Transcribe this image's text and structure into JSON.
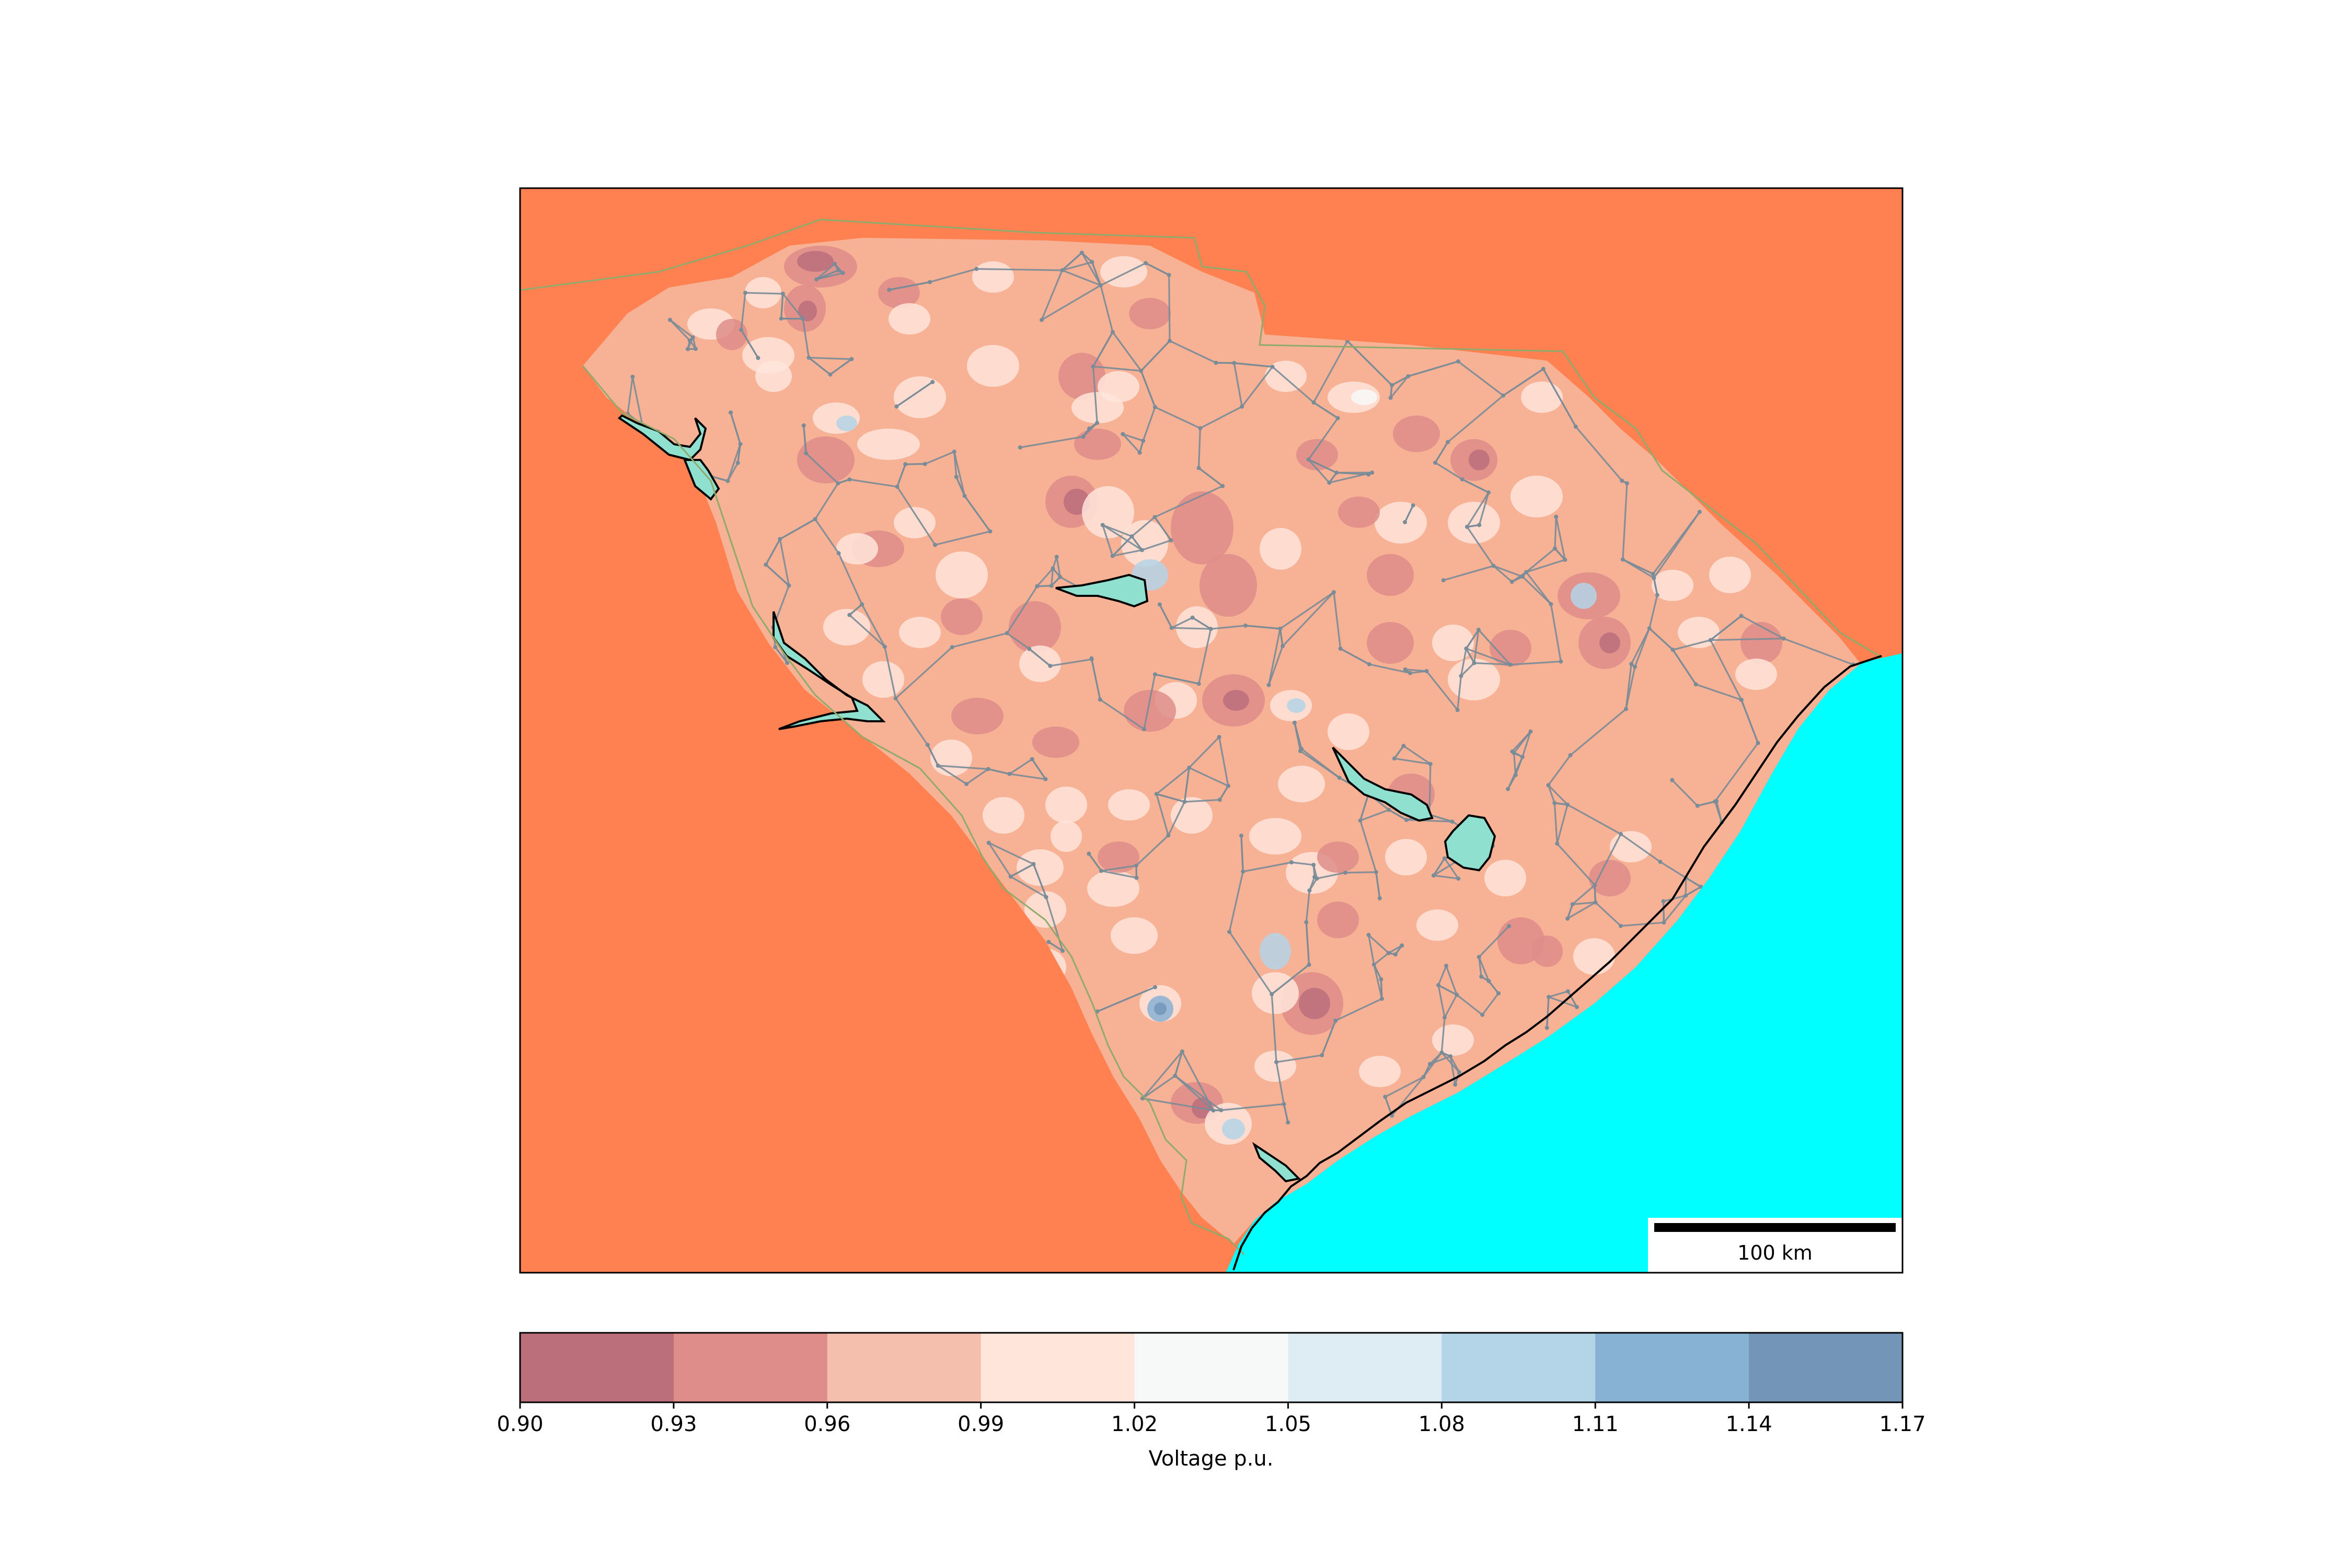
{
  "colors": {
    "background_land": "#ff8050",
    "ocean": "#00ffff",
    "lakes": "#90e0d0",
    "state_border": "#8faa6a",
    "lines": "#7a8c98",
    "heatmap_base": "#f7b195"
  },
  "map": {
    "scale_bar": {
      "label": "100 km"
    }
  },
  "colorbar": {
    "label": "Voltage p.u.",
    "ticks": [
      "0.90",
      "0.93",
      "0.96",
      "0.99",
      "1.02",
      "1.05",
      "1.08",
      "1.11",
      "1.14",
      "1.17"
    ],
    "bins": [
      {
        "range": [
          0.9,
          0.93
        ],
        "color": "#bb6f7b"
      },
      {
        "range": [
          0.93,
          0.96
        ],
        "color": "#de8d8a"
      },
      {
        "range": [
          0.96,
          0.99
        ],
        "color": "#f5bfae"
      },
      {
        "range": [
          0.99,
          1.02
        ],
        "color": "#ffe5da"
      },
      {
        "range": [
          1.02,
          1.05
        ],
        "color": "#f7f9f9"
      },
      {
        "range": [
          1.05,
          1.08
        ],
        "color": "#deedf3"
      },
      {
        "range": [
          1.08,
          1.11
        ],
        "color": "#b4d4e7"
      },
      {
        "range": [
          1.11,
          1.14
        ],
        "color": "#88b2d4"
      },
      {
        "range": [
          1.14,
          1.17
        ],
        "color": "#7395b8"
      }
    ]
  }
}
